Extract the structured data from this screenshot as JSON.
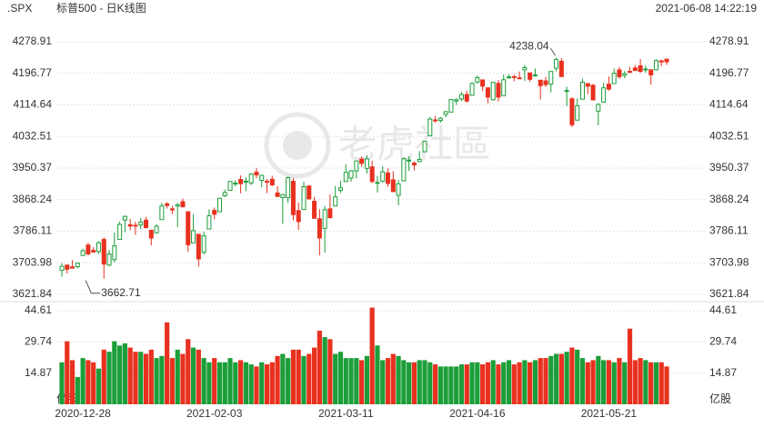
{
  "chart_data": {
    "type": "candlestick",
    "symbol": ".SPX",
    "title": "标普500 - 日K线图",
    "timestamp": "2021-06-08 14:22:19",
    "watermark": "老虎社區",
    "up_color": "#1c9e3a",
    "down_color": "#e8311f",
    "grid": true,
    "x": [
      null,
      null,
      null,
      null,
      "2020-12-28",
      null,
      null,
      null,
      null,
      null,
      null,
      null,
      null,
      null,
      null,
      null,
      null,
      null,
      null,
      null,
      null,
      null,
      null,
      null,
      null,
      null,
      null,
      null,
      null,
      "2021-02-03",
      null,
      null,
      null,
      null,
      null,
      null,
      null,
      null,
      null,
      null,
      null,
      null,
      null,
      null,
      null,
      null,
      null,
      null,
      null,
      null,
      null,
      null,
      null,
      null,
      "2021-03-11",
      null,
      null,
      null,
      null,
      null,
      null,
      null,
      null,
      null,
      null,
      null,
      null,
      null,
      null,
      null,
      null,
      null,
      null,
      null,
      null,
      null,
      null,
      null,
      null,
      "2021-04-16",
      null,
      null,
      null,
      null,
      null,
      null,
      null,
      null,
      null,
      null,
      null,
      null,
      null,
      null,
      null,
      null,
      null,
      null,
      null,
      null,
      null,
      null,
      null,
      null,
      "2021-05-21",
      null,
      null,
      null,
      null,
      null,
      null,
      null,
      null,
      null,
      null,
      null
    ],
    "open": [
      3684.3,
      3698.1,
      3693.4,
      3694.0,
      3723.0,
      3750.0,
      3736.2,
      3733.3,
      3764.6,
      3698.0,
      3712.2,
      3764.7,
      3815.1,
      3803.1,
      3801.6,
      3802.2,
      3814.98,
      3788.7,
      3781.9,
      3816.2,
      3857.5,
      3844.2,
      3851.7,
      3862.96,
      3836.8,
      3755.8,
      3778.1,
      3731.2,
      3791.8,
      3840.3,
      3836.7,
      3878.3,
      3892.6,
      3910.5,
      3920.8,
      3916.4,
      3911.7,
      3939.6,
      3918.5,
      3915.9,
      3921.2,
      3885.6,
      3873.7,
      3873.7,
      3915.8,
      3839.7,
      3842.5,
      3903.6,
      3863.99,
      3818.5,
      3793.6,
      3844.4,
      3851.9,
      3891.99,
      3915.5,
      3924.5,
      3942.96,
      3973.6,
      3949.6,
      3953.5,
      3913.1,
      3916.5,
      3937.6,
      3919.9,
      3879.3,
      3917.1,
      3969.3,
      3963.3,
      3967.3,
      3992.8,
      4034.4,
      4075.6,
      4074.3,
      4089.95,
      4096.1,
      4124.7,
      4130.1,
      4141.6,
      4139.8,
      4174.1,
      4179.8,
      4159.2,
      4128.1,
      4170.5,
      4138.8,
      4185.0,
      4188.3,
      4185.1,
      4206.1,
      4198.1,
      4191.98,
      4179.0,
      4177.1,
      4169.1,
      4210.3,
      4228.3,
      4150.3,
      4130.6,
      4074.99,
      4129.6,
      4169.9,
      4165.9,
      4098.5,
      4121.97,
      4168.6,
      4170.2,
      4205.9,
      4191.6,
      4201.9,
      4210.8,
      4216.5,
      4206.8,
      4206.1,
      4206.1,
      4229.3,
      4233.8
    ],
    "high": [
      3702.9,
      3698.3,
      3711.2,
      3703.8,
      3740.5,
      3756.1,
      3744.6,
      3760.2,
      3769.99,
      3737.8,
      3783.0,
      3811.6,
      3826.7,
      3817.9,
      3810.8,
      3820.96,
      3823.6,
      3788.7,
      3804.5,
      3859.8,
      3861.5,
      3852.3,
      3859.2,
      3870.9,
      3836.8,
      3830.5,
      3778.1,
      3784.3,
      3843.1,
      3847.5,
      3872.4,
      3894.6,
      3915.8,
      3918.4,
      3931.5,
      3925.99,
      3937.2,
      3950.4,
      3933.6,
      3921.98,
      3930.4,
      3902.9,
      3883.0,
      3928.7,
      3925.0,
      3861.1,
      3914.5,
      3906.4,
      3874.5,
      3843.7,
      3851.7,
      3881.1,
      3903.8,
      3917.4,
      3960.3,
      3944.99,
      3970.1,
      3981.0,
      3983.9,
      3969.6,
      3930.1,
      3955.3,
      3949.1,
      3942.1,
      3919.5,
      3978.2,
      3981.8,
      3968.0,
      3994.4,
      4020.6,
      4083.4,
      4086.2,
      4083.1,
      4098.2,
      4129.5,
      4131.8,
      4148.0,
      4151.7,
      4173.5,
      4191.3,
      4180.8,
      4159.2,
      4175.0,
      4179.6,
      4194.2,
      4194.2,
      4193.4,
      4201.5,
      4218.8,
      4198.1,
      4209.4,
      4179.0,
      4187.7,
      4202.7,
      4238.04,
      4236.4,
      4162.0,
      4134.7,
      4131.6,
      4183.1,
      4171.9,
      4169.1,
      4119.6,
      4172.8,
      4188.7,
      4209.5,
      4213.4,
      4202.6,
      4213.4,
      4218.4,
      4234.1,
      4217.4,
      4207.0,
      4233.5,
      4232.3,
      4234.1
    ],
    "low": [
      3667.5,
      3676.2,
      3689.3,
      3689.3,
      3723.0,
      3723.3,
      3730.2,
      3726.9,
      3662.71,
      3695.1,
      3705.3,
      3764.7,
      3783.6,
      3789.0,
      3776.5,
      3791.5,
      3792.9,
      3749.6,
      3780.4,
      3816.2,
      3845.1,
      3830.4,
      3797.2,
      3847.8,
      3732.5,
      3755.8,
      3694.1,
      3725.6,
      3791.8,
      3816.7,
      3836.7,
      3874.9,
      3892.6,
      3902.6,
      3884.9,
      3890.4,
      3905.8,
      3923.9,
      3900.4,
      3885.0,
      3903.1,
      3874.7,
      3805.6,
      3859.6,
      3814.0,
      3789.5,
      3842.5,
      3868.6,
      3818.9,
      3723.3,
      3730.2,
      3819.3,
      3851.9,
      3885.7,
      3915.5,
      3915.2,
      3923.5,
      3953.4,
      3935.7,
      3910.9,
      3886.8,
      3912.7,
      3901.6,
      3889.1,
      3853.5,
      3917.1,
      3943.3,
      3944.4,
      3966.98,
      3992.8,
      4034.4,
      4068.1,
      4068.3,
      4082.5,
      4095.5,
      4114.8,
      4124.4,
      4120.9,
      4139.8,
      4170.8,
      4150.5,
      4118.4,
      4126.4,
      4123.7,
      4138.8,
      4182.4,
      4176.2,
      4181.8,
      4176.8,
      4174.9,
      4188.0,
      4128.6,
      4160.9,
      4147.3,
      4201.6,
      4188.1,
      4111.5,
      4056.9,
      4074.99,
      4129.6,
      4142.7,
      4125.99,
      4061.4,
      4121.97,
      4151.7,
      4170.2,
      4182.5,
      4184.1,
      4197.8,
      4203.6,
      4197.6,
      4198.3,
      4167.3,
      4206.1,
      4215.7,
      4218.7
    ],
    "close": [
      3694.9,
      3687.3,
      3690.0,
      3703.1,
      3735.4,
      3727.0,
      3732.0,
      3756.1,
      3700.7,
      3726.9,
      3748.1,
      3803.8,
      3824.7,
      3799.6,
      3801.2,
      3809.8,
      3795.5,
      3768.3,
      3798.9,
      3851.9,
      3853.1,
      3841.5,
      3855.4,
      3849.6,
      3750.8,
      3787.4,
      3714.2,
      3773.9,
      3826.3,
      3830.2,
      3871.7,
      3886.8,
      3915.6,
      3911.2,
      3909.9,
      3916.4,
      3934.8,
      3932.6,
      3931.3,
      3913.9,
      3906.7,
      3876.5,
      3881.4,
      3925.4,
      3829.3,
      3811.2,
      3901.8,
      3870.3,
      3819.7,
      3768.5,
      3841.9,
      3821.4,
      3875.4,
      3898.8,
      3939.3,
      3943.3,
      3968.9,
      3962.7,
      3974.1,
      3915.5,
      3913.1,
      3940.6,
      3910.5,
      3889.1,
      3909.5,
      3974.5,
      3971.1,
      3958.6,
      3972.9,
      4019.9,
      4077.9,
      4073.9,
      4079.9,
      4097.2,
      4128.8,
      4127.99,
      4141.6,
      4124.7,
      4170.4,
      4185.5,
      4163.3,
      4134.9,
      4173.4,
      4134.98,
      4180.2,
      4187.6,
      4186.7,
      4183.2,
      4211.5,
      4181.2,
      4192.7,
      4164.7,
      4167.6,
      4201.6,
      4232.6,
      4188.4,
      4152.1,
      4063.0,
      4112.5,
      4173.9,
      4163.3,
      4127.8,
      4115.7,
      4159.1,
      4155.9,
      4197.1,
      4188.1,
      4195.99,
      4200.9,
      4204.1,
      4202.0,
      4208.1,
      4192.9,
      4229.9,
      4226.5,
      4227.0
    ],
    "ylim": [
      3621.84,
      4278.91
    ],
    "yticks": [
      3621.84,
      3703.98,
      3786.11,
      3868.24,
      3950.37,
      4032.51,
      4114.64,
      4196.77,
      4278.91
    ],
    "volume": {
      "unit": "亿股",
      "values": [
        20,
        30,
        21,
        13,
        22,
        21,
        20,
        17,
        26,
        25,
        30,
        28,
        29,
        27,
        25,
        25,
        24,
        26,
        22,
        23,
        39,
        22,
        26,
        24,
        31,
        27,
        26,
        22,
        20,
        22,
        20,
        20,
        22,
        20,
        21,
        20,
        19,
        18,
        20,
        19,
        20,
        23,
        24,
        22,
        26,
        26,
        23,
        24,
        27,
        35,
        32,
        31,
        24,
        25,
        22,
        22,
        22,
        21,
        23,
        46,
        28,
        21,
        22,
        24,
        23,
        21,
        20,
        20,
        21,
        21,
        20,
        19,
        18,
        18,
        18,
        18,
        19,
        19,
        20,
        20,
        19,
        20,
        21,
        19,
        20,
        21,
        19,
        20,
        21,
        20,
        21,
        22,
        22,
        23,
        24,
        24,
        25,
        27,
        26,
        22,
        20,
        21,
        23,
        21,
        21,
        20,
        22,
        20,
        36,
        21,
        22,
        21,
        20,
        20,
        20,
        18
      ],
      "ylim": [
        0,
        48
      ],
      "yticks": [
        14.87,
        29.74,
        44.61
      ]
    }
  }
}
